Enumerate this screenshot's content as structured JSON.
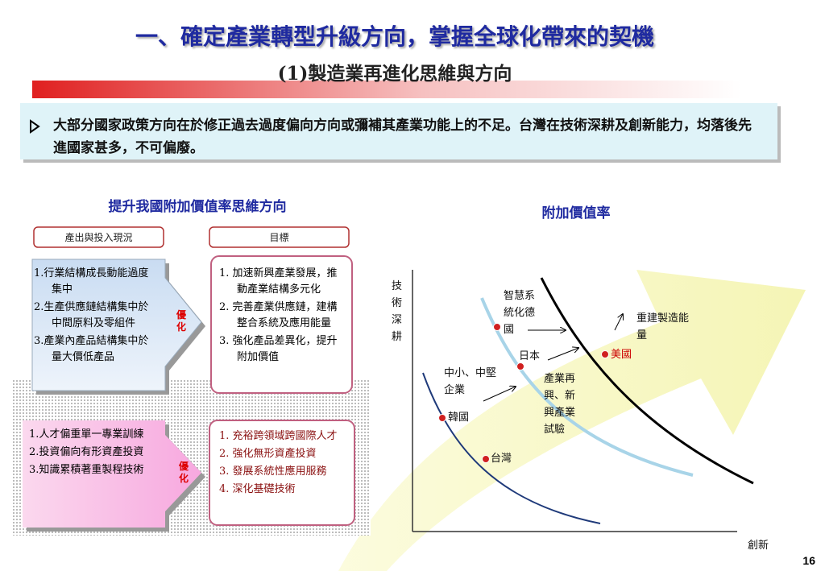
{
  "header": {
    "title": "一、確定產業轉型升級方向，掌握全球化帶來的契機",
    "subtitle": "(1)製造業再進化思維與方向"
  },
  "bullet": "大部分國家政策方向在於修正過去過度偏向方向或彌補其產業功能上的不足。台灣在技術深耕及創新能力，均落後先進國家甚多，不可偏廢。",
  "left_panel": {
    "title": "提升我國附加價值率思維方向",
    "tabs": [
      "產出與投入現況",
      "目標"
    ],
    "rows": [
      {
        "current": [
          "1.行業結構成長動能過度集中",
          "2.生產供應鏈結構集中於中間原料及零組件",
          "3.產業內產品結構集中於量大價低產品"
        ],
        "action": "優化",
        "goals": [
          "1. 加速新興產業發展，推動產業結構多元化",
          "2. 完善產業供應鏈，建構整合系統及應用能量",
          "3. 強化產品差異化，提升附加價值"
        ]
      },
      {
        "current": [
          "1.人才偏重單一專業訓練",
          "2.投資偏向有形資產投資",
          "3.知識累積著重製程技術"
        ],
        "action": "優化",
        "goals": [
          "1. 充裕跨領域跨國際人才",
          "2. 強化無形資產投資",
          "3. 發展系統性應用服務",
          "4. 深化基礎技術"
        ]
      }
    ]
  },
  "right_panel": {
    "title": "附加價值率",
    "y_axis": "技術深耕",
    "x_axis": "創新",
    "points": [
      "智慧系統化德國",
      "日本",
      "美國",
      "中小、中堅企業",
      "韓國",
      "台灣"
    ],
    "notes": [
      "產業再興、新興產業試驗",
      "重建製造能量"
    ]
  },
  "page_number": "16"
}
